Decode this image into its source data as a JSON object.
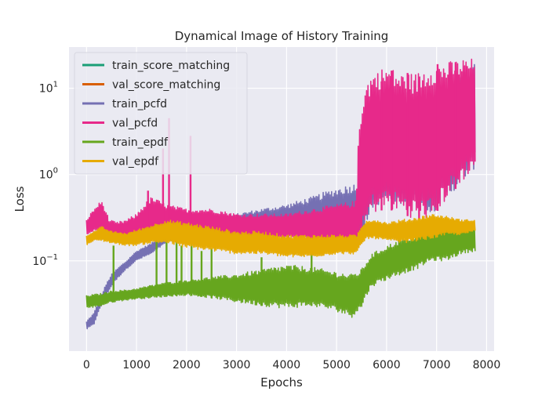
{
  "chart_data": {
    "type": "line",
    "title": "Dynamical Image of History Training",
    "xlabel": "Epochs",
    "ylabel": "Loss",
    "y_scale": "log",
    "xlim": [
      -350,
      8150
    ],
    "ylim": [
      0.009,
      30
    ],
    "grid": true,
    "legend_position": "top-left",
    "background_color": "#eaeaf2",
    "x_ticks": [
      0,
      1000,
      2000,
      3000,
      4000,
      5000,
      6000,
      7000,
      8000
    ],
    "x_tick_labels": [
      "0",
      "1000",
      "2000",
      "3000",
      "4000",
      "5000",
      "6000",
      "7000",
      "8000"
    ],
    "y_ticks": [
      0.1,
      1,
      10
    ],
    "y_tick_labels": [
      {
        "base": "10",
        "exp": "−1"
      },
      {
        "base": "10",
        "exp": "0"
      },
      {
        "base": "10",
        "exp": "1"
      }
    ],
    "series": [
      {
        "name": "train_score_matching",
        "color": "#1b9e77",
        "points": []
      },
      {
        "name": "val_score_matching",
        "color": "#d95f02",
        "points": []
      },
      {
        "name": "train_pcfd",
        "color": "#7570b3",
        "band": {
          "x": [
            0,
            150,
            300,
            500,
            800,
            1000,
            1300,
            1600,
            2000,
            2500,
            3000,
            3500,
            4000,
            4500,
            5000,
            5400,
            5550,
            5700,
            6000,
            6300,
            6600,
            6900,
            7200,
            7500,
            7780
          ],
          "low": [
            0.016,
            0.018,
            0.03,
            0.05,
            0.08,
            0.1,
            0.12,
            0.16,
            0.18,
            0.2,
            0.19,
            0.2,
            0.19,
            0.18,
            0.16,
            0.14,
            0.2,
            0.4,
            0.5,
            0.45,
            0.4,
            0.35,
            0.5,
            0.8,
            1.2
          ],
          "high": [
            0.02,
            0.025,
            0.04,
            0.07,
            0.1,
            0.13,
            0.16,
            0.22,
            0.26,
            0.3,
            0.35,
            0.4,
            0.45,
            0.55,
            0.7,
            0.8,
            2.0,
            3.0,
            4.0,
            5.0,
            6.0,
            8.0,
            12.0,
            16.0,
            20.0
          ]
        }
      },
      {
        "name": "val_pcfd",
        "color": "#e7298a",
        "band": {
          "x": [
            0,
            150,
            300,
            450,
            600,
            800,
            1000,
            1300,
            1600,
            2000,
            2500,
            3000,
            3500,
            4000,
            4500,
            5000,
            5400,
            5550,
            5700,
            6000,
            6300,
            6600,
            6900,
            7200,
            7500,
            7780
          ],
          "low": [
            0.2,
            0.22,
            0.22,
            0.18,
            0.16,
            0.16,
            0.17,
            0.19,
            0.2,
            0.2,
            0.19,
            0.19,
            0.18,
            0.18,
            0.17,
            0.16,
            0.15,
            0.2,
            0.35,
            0.4,
            0.35,
            0.3,
            0.3,
            0.5,
            0.8,
            1.2
          ],
          "high": [
            0.3,
            0.4,
            0.5,
            0.3,
            0.28,
            0.3,
            0.35,
            0.55,
            0.45,
            0.4,
            0.4,
            0.35,
            0.35,
            0.35,
            0.4,
            0.45,
            0.5,
            10.0,
            15.0,
            18.0,
            15.0,
            15.0,
            20.0,
            20.0,
            22.0,
            22.0
          ]
        },
        "spikes": [
          {
            "x": 1650,
            "y": 4.5
          },
          {
            "x": 2080,
            "y": 2.8
          },
          {
            "x": 1530,
            "y": 2.0
          },
          {
            "x": 1230,
            "y": 0.65
          },
          {
            "x": 5900,
            "y": 12
          },
          {
            "x": 6100,
            "y": 16
          },
          {
            "x": 6420,
            "y": 15
          },
          {
            "x": 6650,
            "y": 12
          },
          {
            "x": 7020,
            "y": 19
          },
          {
            "x": 7380,
            "y": 20
          }
        ]
      },
      {
        "name": "train_epdf",
        "color": "#66a61e",
        "band": {
          "x": [
            0,
            300,
            500,
            800,
            1000,
            1500,
            2000,
            2500,
            3000,
            3500,
            4000,
            4500,
            5000,
            5300,
            5500,
            5700,
            6000,
            6300,
            6600,
            6900,
            7200,
            7500,
            7780
          ],
          "low": [
            0.028,
            0.03,
            0.033,
            0.035,
            0.036,
            0.038,
            0.04,
            0.037,
            0.033,
            0.03,
            0.028,
            0.03,
            0.026,
            0.022,
            0.028,
            0.05,
            0.06,
            0.07,
            0.08,
            0.1,
            0.1,
            0.12,
            0.13
          ],
          "high": [
            0.04,
            0.042,
            0.045,
            0.046,
            0.048,
            0.055,
            0.06,
            0.065,
            0.07,
            0.08,
            0.09,
            0.085,
            0.075,
            0.07,
            0.08,
            0.12,
            0.15,
            0.18,
            0.2,
            0.22,
            0.25,
            0.26,
            0.27
          ]
        },
        "spikes": [
          {
            "x": 540,
            "y": 0.15
          },
          {
            "x": 1400,
            "y": 0.2
          },
          {
            "x": 1600,
            "y": 0.18
          },
          {
            "x": 1800,
            "y": 0.21
          },
          {
            "x": 1900,
            "y": 0.15
          },
          {
            "x": 2100,
            "y": 0.22
          },
          {
            "x": 2300,
            "y": 0.13
          },
          {
            "x": 2500,
            "y": 0.14
          },
          {
            "x": 3500,
            "y": 0.11
          },
          {
            "x": 4500,
            "y": 0.13
          }
        ]
      },
      {
        "name": "val_epdf",
        "color": "#e6ab02",
        "band": {
          "x": [
            0,
            150,
            300,
            500,
            800,
            1000,
            1300,
            1600,
            2000,
            2500,
            3000,
            3500,
            4000,
            4500,
            5000,
            5400,
            5600,
            5800,
            6000,
            6300,
            6600,
            6900,
            7200,
            7500,
            7780
          ],
          "low": [
            0.15,
            0.17,
            0.17,
            0.16,
            0.15,
            0.15,
            0.16,
            0.16,
            0.14,
            0.13,
            0.12,
            0.12,
            0.11,
            0.11,
            0.12,
            0.12,
            0.18,
            0.18,
            0.17,
            0.16,
            0.17,
            0.18,
            0.2,
            0.2,
            0.22
          ],
          "high": [
            0.2,
            0.22,
            0.25,
            0.22,
            0.21,
            0.23,
            0.26,
            0.3,
            0.28,
            0.25,
            0.22,
            0.22,
            0.2,
            0.2,
            0.2,
            0.2,
            0.3,
            0.3,
            0.28,
            0.3,
            0.32,
            0.35,
            0.33,
            0.3,
            0.3
          ]
        }
      }
    ]
  }
}
